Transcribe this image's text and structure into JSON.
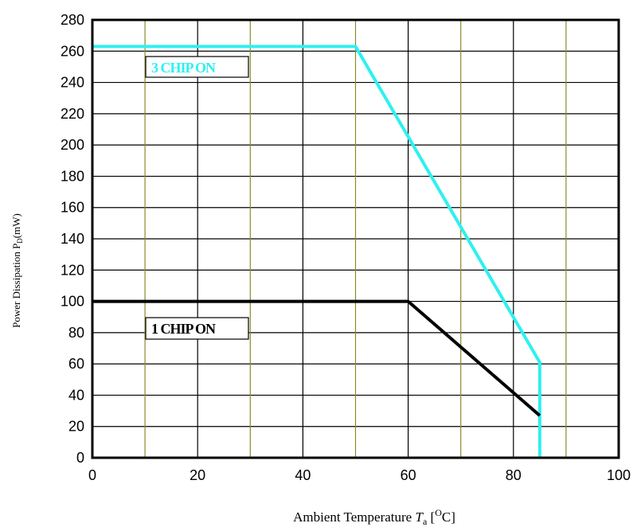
{
  "chart_data": {
    "type": "line",
    "xlabel_prefix": "Ambient Temperature  ",
    "xlabel_symbol": "T",
    "xlabel_sub": "a",
    "xlabel_unit_open": " [",
    "xlabel_unit_sup": "O",
    "xlabel_unit_close": "C]",
    "ylabel_main": "Power Dissipation P",
    "ylabel_sub": "D",
    "ylabel_unit": "(mW)",
    "xlim": [
      0,
      100
    ],
    "ylim": [
      0,
      280
    ],
    "x_ticks": [
      0,
      20,
      40,
      60,
      80,
      100
    ],
    "y_ticks": [
      0,
      20,
      40,
      60,
      80,
      100,
      120,
      140,
      160,
      180,
      200,
      220,
      240,
      260,
      280
    ],
    "x_major_grid": [
      20,
      40,
      60,
      80
    ],
    "x_minor_grid": [
      10,
      30,
      50,
      70,
      90
    ],
    "grid": true,
    "series": [
      {
        "name": "3 CHIP ON",
        "color": "#2ff0f0",
        "points": [
          [
            0,
            263
          ],
          [
            50,
            263
          ],
          [
            85,
            61
          ],
          [
            85,
            0
          ]
        ]
      },
      {
        "name": "1 CHIP ON",
        "color": "#000000",
        "points": [
          [
            0,
            100
          ],
          [
            60,
            100
          ],
          [
            85,
            27
          ]
        ]
      }
    ],
    "annotations": [
      {
        "text": "3 CHIP ON",
        "color": "#2ff0f0"
      },
      {
        "text": "1 CHIP ON",
        "color": "#000000"
      }
    ]
  }
}
